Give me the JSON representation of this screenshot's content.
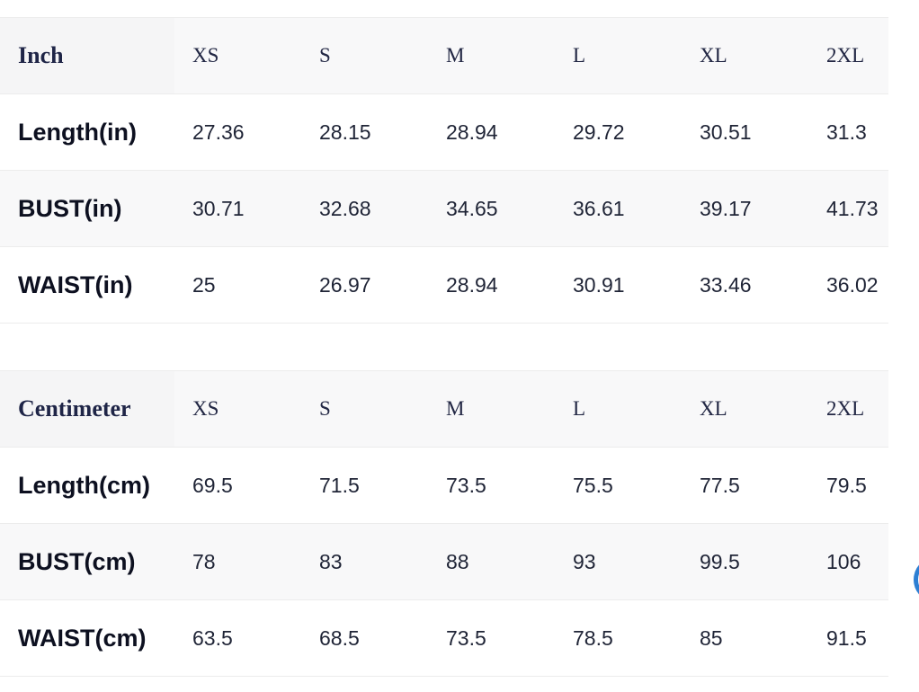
{
  "tables": {
    "inch": {
      "unit_label": "Inch",
      "sizes": [
        "XS",
        "S",
        "M",
        "L",
        "XL",
        "2XL"
      ],
      "rows": [
        {
          "label": "Length(in)",
          "values": [
            "27.36",
            "28.15",
            "28.94",
            "29.72",
            "30.51",
            "31.3"
          ]
        },
        {
          "label": "BUST(in)",
          "values": [
            "30.71",
            "32.68",
            "34.65",
            "36.61",
            "39.17",
            "41.73"
          ]
        },
        {
          "label": "WAIST(in)",
          "values": [
            "25",
            "26.97",
            "28.94",
            "30.91",
            "33.46",
            "36.02"
          ]
        }
      ]
    },
    "cm": {
      "unit_label": "Centimeter",
      "sizes": [
        "XS",
        "S",
        "M",
        "L",
        "XL",
        "2XL"
      ],
      "rows": [
        {
          "label": "Length(cm)",
          "values": [
            "69.5",
            "71.5",
            "73.5",
            "75.5",
            "77.5",
            "79.5"
          ]
        },
        {
          "label": "BUST(cm)",
          "values": [
            "78",
            "83",
            "88",
            "93",
            "99.5",
            "106"
          ]
        },
        {
          "label": "WAIST(cm)",
          "values": [
            "63.5",
            "68.5",
            "73.5",
            "78.5",
            "85",
            "91.5"
          ]
        }
      ]
    }
  },
  "colors": {
    "header_background": "#f8f8f9",
    "row_shade": "#f8f8f9",
    "border": "#ececec",
    "text": "#1f2436",
    "edge_button_accent": "#2d7fd3"
  },
  "edge_button": {
    "icon": "circle-button-icon"
  }
}
